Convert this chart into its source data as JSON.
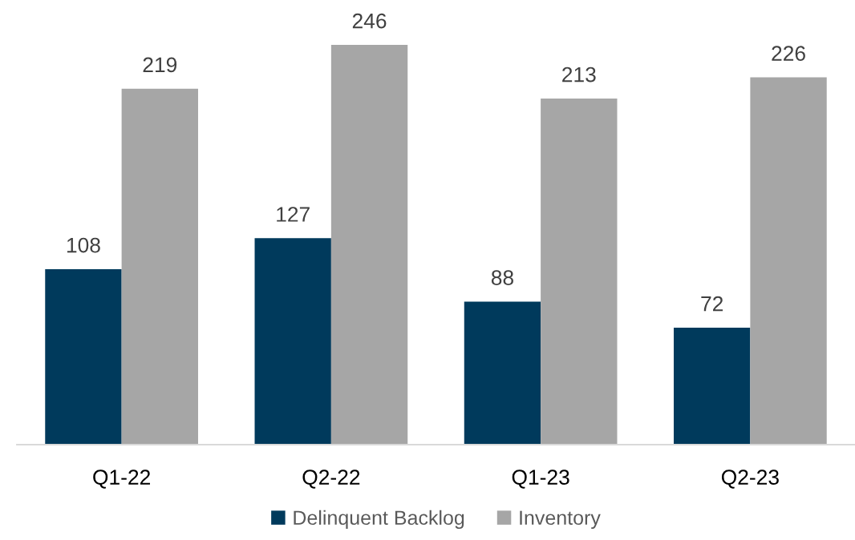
{
  "chart_data": {
    "type": "bar",
    "categories": [
      "Q1-22",
      "Q2-22",
      "Q1-23",
      "Q2-23"
    ],
    "series": [
      {
        "name": "Delinquent Backlog",
        "color": "#003a5c",
        "values": [
          108,
          127,
          88,
          72
        ]
      },
      {
        "name": "Inventory",
        "color": "#a6a6a6",
        "values": [
          219,
          246,
          213,
          226
        ]
      }
    ],
    "data_labels": true,
    "legend": "bottom",
    "grid": false,
    "tick_labels": "x"
  }
}
